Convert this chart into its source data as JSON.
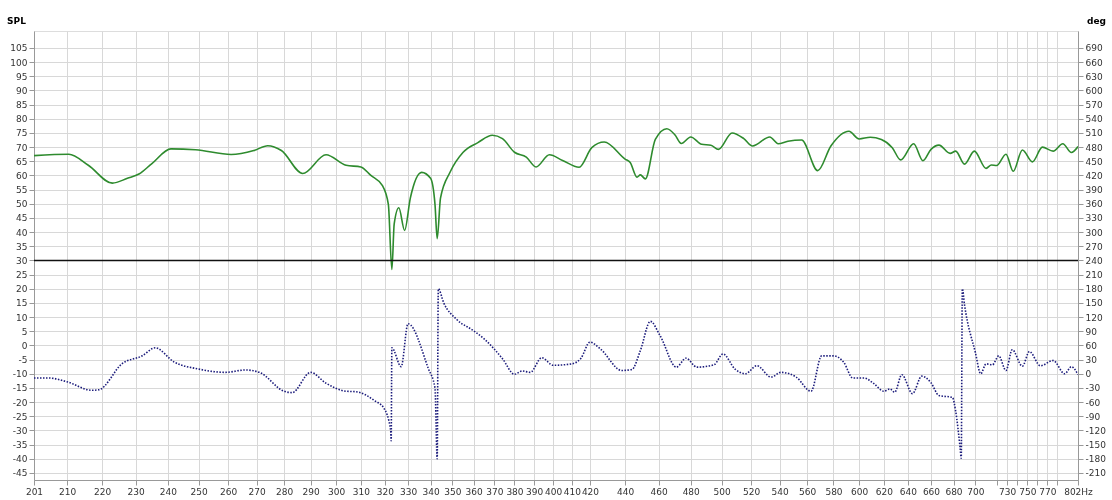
{
  "chart_data": {
    "type": "line",
    "ylabel": "SPL",
    "y2label": "deg",
    "log": "x",
    "grid": true,
    "xlim": [
      201,
      802
    ],
    "xticks": [
      201,
      210,
      220,
      230,
      240,
      250,
      260,
      270,
      280,
      290,
      300,
      310,
      320,
      330,
      340,
      350,
      360,
      370,
      380,
      390,
      400,
      410,
      420,
      440,
      460,
      480,
      500,
      520,
      540,
      560,
      580,
      600,
      620,
      640,
      660,
      680,
      700,
      {
        "value": 720,
        "label": null
      },
      730,
      {
        "value": 740,
        "label": null
      },
      750,
      {
        "value": 760,
        "label": null
      },
      770,
      {
        "value": 780,
        "label": null
      },
      {
        "value": 802,
        "label": "802Hz"
      }
    ],
    "ylim": [
      -47.5,
      111
    ],
    "yticks": [
      -45,
      -40,
      -35,
      -30,
      -25,
      -20,
      -15,
      -10,
      -5,
      0,
      5,
      10,
      15,
      20,
      25,
      30,
      35,
      40,
      45,
      50,
      55,
      60,
      65,
      70,
      75,
      80,
      85,
      90,
      95,
      100,
      105
    ],
    "y2lim": [
      -225,
      726
    ],
    "y2ticks": [
      -210,
      -180,
      -150,
      -120,
      -90,
      -60,
      -30,
      0,
      30,
      60,
      90,
      120,
      150,
      180,
      210,
      240,
      270,
      300,
      330,
      360,
      390,
      420,
      450,
      480,
      510,
      540,
      570,
      600,
      630,
      660,
      690
    ],
    "ref_lines": [
      {
        "axis": "y",
        "value": 30,
        "color": "#111111"
      }
    ],
    "series": [
      {
        "color": "#2e8b2e",
        "line_style": "solid",
        "x": [
          201,
          210.5,
          216,
          223,
          227.5,
          231,
          235,
          241,
          249,
          261,
          269,
          274,
          279,
          287,
          296,
          304,
          310,
          314,
          319,
          321.5,
          323,
          324,
          326,
          328.5,
          331,
          336,
          340,
          342,
          343,
          344.5,
          349,
          355,
          362,
          369,
          374,
          380,
          386,
          391,
          398,
          405,
          414,
          421,
          428,
          440,
          443,
          447,
          449,
          452,
          458,
          465,
          470,
          474,
          480,
          487,
          493,
          498,
          507,
          515,
          521,
          533,
          539,
          546,
          556,
          568,
          578,
          592,
          600,
          609,
          618,
          627,
          634,
          645,
          653,
          660,
          667,
          677,
          682,
          690,
          699,
          710,
          715,
          720,
          729,
          736,
          745,
          755,
          765,
          776,
          786,
          795,
          802
        ],
        "values": [
          67.0,
          67.5,
          63.6,
          57.3,
          59.0,
          60.5,
          64.2,
          69.4,
          69.1,
          67.4,
          68.8,
          70.5,
          68.8,
          60.7,
          67.3,
          63.6,
          63.0,
          60.1,
          56.4,
          49.8,
          26.8,
          42.9,
          48.6,
          40.6,
          52.0,
          61.1,
          59.0,
          49.8,
          37.7,
          52.0,
          61.3,
          68.2,
          71.6,
          74.2,
          73.0,
          68.2,
          66.5,
          63.0,
          67.3,
          65.3,
          62.9,
          69.8,
          71.8,
          65.8,
          64.6,
          59.4,
          60.2,
          58.8,
          72.7,
          76.5,
          74.4,
          71.3,
          73.6,
          71.0,
          70.7,
          69.2,
          75.0,
          73.0,
          70.4,
          73.6,
          71.2,
          72.1,
          72.5,
          61.7,
          70.4,
          75.6,
          72.9,
          73.5,
          72.7,
          69.8,
          65.5,
          71.2,
          65.2,
          69.2,
          70.7,
          67.8,
          68.6,
          64.0,
          68.6,
          62.5,
          63.7,
          63.5,
          67.5,
          61.5,
          69.0,
          64.8,
          70.0,
          68.6,
          71.2,
          68.1,
          70.2
        ]
      },
      {
        "color": "#1c1c7c",
        "line_style": "dotted",
        "axis": "y2",
        "x": [
          201,
          205,
          210,
          217,
          219,
          226,
          232,
          236,
          242,
          250,
          259,
          266,
          271,
          280,
          283,
          290,
          296,
          304,
          308,
          316,
          319.5,
          322.5,
          322.7,
          323,
          327,
          330,
          339,
          342,
          343,
          343.5,
          346,
          352,
          360,
          365,
          374,
          380,
          384,
          388,
          394,
          400,
          410,
          415,
          420,
          426,
          438,
          444,
          449,
          455,
          461,
          471,
          477,
          484,
          495,
          501,
          509,
          516,
          524,
          534,
          541,
          552,
          563,
          571,
          580,
          588,
          595,
          604,
          612,
          620,
          625,
          629,
          635,
          644,
          652,
          660,
          667,
          679,
          682,
          686,
          687,
          688,
          690,
          700,
          705,
          710,
          716,
          722,
          729,
          735,
          745,
          752,
          763,
          776,
          788,
          795,
          802
        ],
        "values": [
          -9,
          -9,
          -17,
          -35,
          -34,
          22,
          38,
          55,
          25,
          10,
          3,
          8,
          3,
          -37,
          -40,
          3,
          -20,
          -37,
          -38,
          -58,
          -72,
          -120,
          -142,
          55,
          15,
          106,
          11,
          -30,
          -180,
          180,
          150,
          115,
          91,
          74,
          32,
          -1,
          6,
          3,
          34,
          18,
          21,
          33,
          67,
          52,
          7,
          9,
          49,
          111,
          80,
          14,
          33,
          14,
          19,
          42,
          10,
          0,
          17,
          -7,
          3,
          -7,
          -37,
          38,
          38,
          24,
          -9,
          -9,
          -21,
          -37,
          -32,
          -39,
          -2,
          -42,
          -5,
          -19,
          -46,
          -50,
          -80,
          -157,
          -179,
          180,
          146,
          45,
          0,
          21,
          19,
          38,
          7,
          51,
          16,
          47,
          17,
          28,
          0,
          15,
          -2
        ]
      }
    ]
  }
}
